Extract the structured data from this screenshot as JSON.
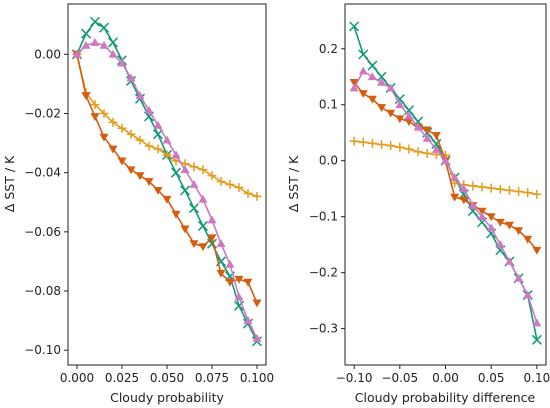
{
  "colors": {
    "green": "#119977",
    "orange": "#e59b1c",
    "vermilion": "#d65c0e",
    "pink": "#cc79c2"
  },
  "chart_data": [
    {
      "type": "line",
      "xlabel": "Cloudy probability",
      "ylabel": "Δ SST / K",
      "xlim": [
        -0.005,
        0.105
      ],
      "ylim": [
        -0.105,
        0.017
      ],
      "xticks": [
        0.0,
        0.025,
        0.05,
        0.075,
        0.1
      ],
      "xtick_labels": [
        "0.000",
        "0.025",
        "0.050",
        "0.075",
        "0.100"
      ],
      "yticks": [
        0.0,
        -0.02,
        -0.04,
        -0.06,
        -0.08,
        -0.1
      ],
      "ytick_labels": [
        "0.00",
        "−0.02",
        "−0.04",
        "−0.06",
        "−0.08",
        "−0.10"
      ],
      "grid": false,
      "series": [
        {
          "color": "green",
          "marker": "x",
          "x": [
            0.0,
            0.005,
            0.01,
            0.015,
            0.02,
            0.025,
            0.03,
            0.035,
            0.04,
            0.045,
            0.05,
            0.055,
            0.06,
            0.065,
            0.07,
            0.075,
            0.08,
            0.085,
            0.09,
            0.095,
            0.1
          ],
          "y": [
            0.0,
            0.007,
            0.011,
            0.009,
            0.004,
            -0.002,
            -0.009,
            -0.015,
            -0.021,
            -0.027,
            -0.034,
            -0.04,
            -0.046,
            -0.052,
            -0.058,
            -0.064,
            -0.07,
            -0.075,
            -0.085,
            -0.091,
            -0.097
          ]
        },
        {
          "color": "orange",
          "marker": "+",
          "x": [
            0.0,
            0.005,
            0.01,
            0.015,
            0.02,
            0.025,
            0.03,
            0.035,
            0.04,
            0.045,
            0.05,
            0.055,
            0.06,
            0.065,
            0.07,
            0.075,
            0.08,
            0.085,
            0.09,
            0.095,
            0.1
          ],
          "y": [
            0.0,
            -0.013,
            -0.017,
            -0.02,
            -0.023,
            -0.025,
            -0.027,
            -0.029,
            -0.031,
            -0.032,
            -0.034,
            -0.036,
            -0.037,
            -0.038,
            -0.039,
            -0.041,
            -0.043,
            -0.044,
            -0.045,
            -0.047,
            -0.048
          ]
        },
        {
          "color": "vermilion",
          "marker": "v",
          "x": [
            0.0,
            0.005,
            0.01,
            0.015,
            0.02,
            0.025,
            0.03,
            0.035,
            0.04,
            0.045,
            0.05,
            0.055,
            0.06,
            0.065,
            0.07,
            0.075,
            0.08,
            0.085,
            0.09,
            0.095,
            0.1
          ],
          "y": [
            0.0,
            -0.014,
            -0.021,
            -0.028,
            -0.032,
            -0.036,
            -0.039,
            -0.041,
            -0.043,
            -0.046,
            -0.049,
            -0.054,
            -0.059,
            -0.064,
            -0.065,
            -0.062,
            -0.074,
            -0.077,
            -0.076,
            -0.077,
            -0.084
          ]
        },
        {
          "color": "pink",
          "marker": "^",
          "x": [
            0.0,
            0.005,
            0.01,
            0.015,
            0.02,
            0.025,
            0.03,
            0.035,
            0.04,
            0.045,
            0.05,
            0.055,
            0.06,
            0.065,
            0.07,
            0.075,
            0.08,
            0.085,
            0.09,
            0.095,
            0.1
          ],
          "y": [
            0.0,
            0.003,
            0.004,
            0.003,
            0.0,
            -0.003,
            -0.008,
            -0.014,
            -0.019,
            -0.024,
            -0.029,
            -0.034,
            -0.039,
            -0.044,
            -0.049,
            -0.056,
            -0.064,
            -0.071,
            -0.082,
            -0.09,
            -0.096
          ]
        }
      ]
    },
    {
      "type": "line",
      "xlabel": "Cloudy probability difference",
      "ylabel": "Δ SST / K",
      "xlim": [
        -0.11,
        0.11
      ],
      "ylim": [
        -0.365,
        0.28
      ],
      "xticks": [
        -0.1,
        -0.05,
        0.0,
        0.05,
        0.1
      ],
      "xtick_labels": [
        "−0.10",
        "−0.05",
        "0.00",
        "0.05",
        "0.10"
      ],
      "yticks": [
        0.2,
        0.1,
        0.0,
        -0.1,
        -0.2,
        -0.3
      ],
      "ytick_labels": [
        "0.2",
        "0.1",
        "0.0",
        "−0.1",
        "−0.2",
        "−0.3"
      ],
      "grid": false,
      "series": [
        {
          "color": "green",
          "marker": "x",
          "x": [
            -0.1,
            -0.09,
            -0.08,
            -0.07,
            -0.06,
            -0.05,
            -0.04,
            -0.03,
            -0.02,
            -0.01,
            0.0,
            0.01,
            0.02,
            0.03,
            0.04,
            0.05,
            0.06,
            0.07,
            0.08,
            0.09,
            0.1
          ],
          "y": [
            0.24,
            0.19,
            0.17,
            0.15,
            0.13,
            0.11,
            0.09,
            0.07,
            0.05,
            0.03,
            0.0,
            -0.03,
            -0.06,
            -0.09,
            -0.11,
            -0.13,
            -0.16,
            -0.18,
            -0.21,
            -0.24,
            -0.32
          ]
        },
        {
          "color": "orange",
          "marker": "+",
          "x": [
            -0.1,
            -0.09,
            -0.08,
            -0.07,
            -0.06,
            -0.05,
            -0.04,
            -0.03,
            -0.02,
            -0.01,
            0.0,
            0.01,
            0.02,
            0.03,
            0.04,
            0.05,
            0.06,
            0.07,
            0.08,
            0.09,
            0.1
          ],
          "y": [
            0.035,
            0.033,
            0.031,
            0.029,
            0.027,
            0.024,
            0.021,
            0.016,
            0.013,
            0.011,
            0.01,
            -0.04,
            -0.043,
            -0.045,
            -0.047,
            -0.049,
            -0.051,
            -0.053,
            -0.055,
            -0.057,
            -0.06
          ]
        },
        {
          "color": "vermilion",
          "marker": "v",
          "x": [
            -0.1,
            -0.09,
            -0.08,
            -0.07,
            -0.06,
            -0.05,
            -0.04,
            -0.03,
            -0.02,
            -0.01,
            0.0,
            0.01,
            0.02,
            0.03,
            0.04,
            0.05,
            0.06,
            0.07,
            0.08,
            0.09,
            0.1
          ],
          "y": [
            0.14,
            0.12,
            0.11,
            0.095,
            0.085,
            0.075,
            0.07,
            0.06,
            0.055,
            0.045,
            0.0,
            -0.065,
            -0.07,
            -0.08,
            -0.09,
            -0.1,
            -0.11,
            -0.115,
            -0.125,
            -0.14,
            -0.16
          ]
        },
        {
          "color": "pink",
          "marker": "^",
          "x": [
            -0.1,
            -0.09,
            -0.08,
            -0.07,
            -0.06,
            -0.05,
            -0.04,
            -0.03,
            -0.02,
            -0.01,
            0.0,
            0.01,
            0.02,
            0.03,
            0.04,
            0.05,
            0.06,
            0.07,
            0.08,
            0.09,
            0.1
          ],
          "y": [
            0.13,
            0.16,
            0.15,
            0.14,
            0.13,
            0.1,
            0.08,
            0.06,
            0.04,
            0.02,
            0.0,
            -0.03,
            -0.05,
            -0.08,
            -0.1,
            -0.12,
            -0.15,
            -0.18,
            -0.21,
            -0.24,
            -0.29
          ]
        }
      ]
    }
  ]
}
